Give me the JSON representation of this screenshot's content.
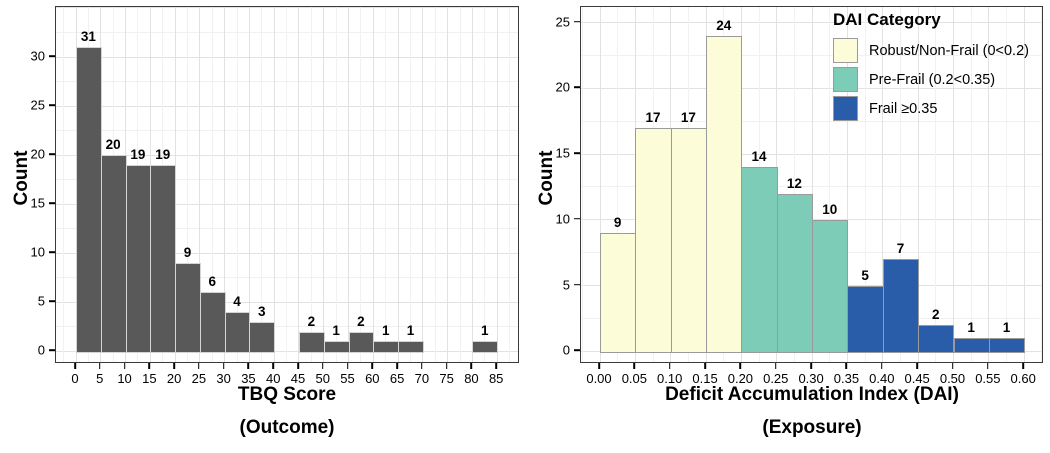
{
  "figure": {
    "background": "#ffffff"
  },
  "chart_data": [
    {
      "type": "bar",
      "subtype": "histogram",
      "title": "",
      "xlabel": "TBQ Score",
      "sublabel": "(Outcome)",
      "ylabel": "Count",
      "bins": {
        "start": 0,
        "width": 5
      },
      "categories": [
        "0-5",
        "5-10",
        "10-15",
        "15-20",
        "20-25",
        "25-30",
        "30-35",
        "35-40",
        "40-45",
        "45-50",
        "50-55",
        "55-60",
        "60-65",
        "65-70",
        "70-75",
        "75-80",
        "80-85"
      ],
      "values": [
        31,
        20,
        19,
        19,
        9,
        6,
        4,
        3,
        0,
        2,
        1,
        2,
        1,
        1,
        0,
        0,
        1
      ],
      "bar_fill": "#595959",
      "bar_border": "#d4d4d4",
      "x_ticks": [
        0,
        5,
        10,
        15,
        20,
        25,
        30,
        35,
        40,
        45,
        50,
        55,
        60,
        65,
        70,
        75,
        80,
        85
      ],
      "x_tick_labels": [
        "0",
        "5",
        "10",
        "15",
        "20",
        "25",
        "30",
        "35",
        "40",
        "45",
        "50",
        "55",
        "60",
        "65",
        "70",
        "75",
        "80",
        "85"
      ],
      "y_ticks": [
        0,
        5,
        10,
        15,
        20,
        25,
        30
      ],
      "y_tick_labels": [
        "0",
        "5",
        "10",
        "15",
        "20",
        "25",
        "30"
      ],
      "xlim": [
        0,
        85
      ],
      "ylim": [
        0,
        33
      ],
      "grid": "major+minor",
      "legend": null
    },
    {
      "type": "bar",
      "subtype": "histogram",
      "title": "",
      "xlabel": "Deficit Accumulation Index (DAI)",
      "sublabel": "(Exposure)",
      "ylabel": "Count",
      "bins": {
        "start": 0,
        "width": 0.05
      },
      "categories": [
        "0.00-0.05",
        "0.05-0.10",
        "0.10-0.15",
        "0.15-0.20",
        "0.20-0.25",
        "0.25-0.30",
        "0.30-0.35",
        "0.35-0.40",
        "0.40-0.45",
        "0.45-0.50",
        "0.50-0.55",
        "0.55-0.60"
      ],
      "values": [
        9,
        17,
        17,
        24,
        14,
        12,
        10,
        5,
        7,
        2,
        1,
        1
      ],
      "bar_categories": [
        0,
        0,
        0,
        0,
        1,
        1,
        1,
        2,
        2,
        2,
        2,
        2
      ],
      "bar_border": "#9a9a9a",
      "x_ticks": [
        0,
        0.05,
        0.1,
        0.15,
        0.2,
        0.25,
        0.3,
        0.35,
        0.4,
        0.45,
        0.5,
        0.55,
        0.6
      ],
      "x_tick_labels": [
        "0.00",
        "0.05",
        "0.10",
        "0.15",
        "0.20",
        "0.25",
        "0.30",
        "0.35",
        "0.40",
        "0.45",
        "0.50",
        "0.55",
        "0.60"
      ],
      "y_ticks": [
        0,
        5,
        10,
        15,
        20,
        25
      ],
      "y_tick_labels": [
        "0",
        "5",
        "10",
        "15",
        "20",
        "25"
      ],
      "xlim": [
        0,
        0.6
      ],
      "ylim": [
        0,
        25
      ],
      "grid": "major+minor",
      "legend": {
        "title": "DAI Category",
        "position": "top-right",
        "items": [
          {
            "label": "Robust/Non-Frail (0<0.2)",
            "color": "#FCFCD8"
          },
          {
            "label": "Pre-Frail (0.2<0.35)",
            "color": "#7DCCB8"
          },
          {
            "label": "Frail ≥0.35",
            "color": "#2A5DA9"
          }
        ]
      }
    }
  ]
}
